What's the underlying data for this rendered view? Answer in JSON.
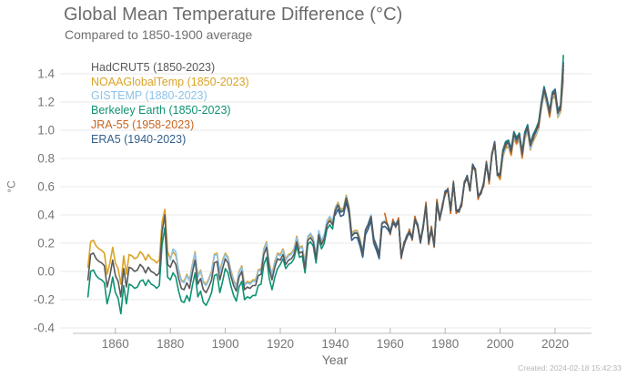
{
  "header": {
    "title": "Global Mean Temperature Difference (°C)",
    "subtitle": "Compared to 1850-1900 average"
  },
  "footer": {
    "created_label": "Created: 2024-02-18 15:42:33"
  },
  "chart_data": {
    "type": "line",
    "title": "Global Mean Temperature Difference (°C)",
    "subtitle": "Compared to 1850-1900 average",
    "xlabel": "Year",
    "ylabel": "°C",
    "xlim": [
      1850,
      2023
    ],
    "ylim": [
      -0.4,
      1.4
    ],
    "grid": "horizontal",
    "legend_position": "inside-top-left",
    "x_ticks": [
      1860,
      1880,
      1900,
      1920,
      1940,
      1960,
      1980,
      2000,
      2020
    ],
    "y_ticks": [
      {
        "value": 1.4,
        "label": "1.4"
      },
      {
        "value": 1.2,
        "label": "1.2"
      },
      {
        "value": 1.0,
        "label": "1.0"
      },
      {
        "value": 0.8,
        "label": "0.8"
      },
      {
        "value": 0.6,
        "label": "0.6"
      },
      {
        "value": 0.4,
        "label": "0.4"
      },
      {
        "value": 0.2,
        "label": "0.2"
      },
      {
        "value": 0.0,
        "label": "0.0"
      },
      {
        "value": -0.2,
        "label": "-0.2"
      },
      {
        "value": -0.4,
        "label": "-0.4"
      }
    ],
    "series": [
      {
        "name": "hadcrut5",
        "label": "HadCRUT5 (1850-2023)",
        "color": "#59595b",
        "start_year": 1850,
        "values": [
          -0.06,
          0.12,
          0.13,
          0.09,
          0.07,
          0.06,
          0.04,
          -0.11,
          -0.03,
          0.08,
          -0.03,
          -0.07,
          -0.18,
          0.02,
          -0.11,
          0.03,
          0.02,
          0.0,
          0.01,
          0.05,
          0.03,
          -0.01,
          0.03,
          0.0,
          -0.01,
          -0.03,
          -0.01,
          0.28,
          0.4,
          0.05,
          0.03,
          0.08,
          0.05,
          -0.05,
          -0.12,
          -0.13,
          -0.08,
          -0.12,
          -0.01,
          0.08,
          -0.09,
          -0.05,
          -0.13,
          -0.15,
          -0.11,
          -0.06,
          0.06,
          0.07,
          -0.06,
          0.02,
          0.09,
          0.06,
          -0.03,
          -0.1,
          -0.14,
          -0.04,
          0.0,
          -0.13,
          -0.11,
          -0.12,
          -0.1,
          -0.1,
          -0.03,
          -0.02,
          0.12,
          0.17,
          0.02,
          -0.06,
          0.03,
          0.09,
          0.08,
          0.12,
          0.05,
          0.08,
          0.09,
          0.12,
          0.21,
          0.13,
          0.14,
          0.02,
          0.22,
          0.24,
          0.21,
          0.09,
          0.26,
          0.19,
          0.23,
          0.33,
          0.36,
          0.33,
          0.43,
          0.47,
          0.42,
          0.43,
          0.52,
          0.44,
          0.25,
          0.27,
          0.27,
          0.21,
          0.13,
          0.29,
          0.33,
          0.39,
          0.23,
          0.18,
          0.12,
          0.34,
          0.35,
          0.33,
          0.28,
          0.35,
          0.33,
          0.36,
          0.11,
          0.19,
          0.25,
          0.28,
          0.24,
          0.37,
          0.33,
          0.21,
          0.32,
          0.47,
          0.21,
          0.3,
          0.19,
          0.49,
          0.38,
          0.46,
          0.56,
          0.57,
          0.43,
          0.62,
          0.43,
          0.42,
          0.48,
          0.62,
          0.67,
          0.57,
          0.75,
          0.71,
          0.53,
          0.55,
          0.62,
          0.76,
          0.64,
          0.82,
          0.91,
          0.68,
          0.68,
          0.84,
          0.9,
          0.91,
          0.85,
          0.97,
          0.93,
          0.96,
          0.83,
          0.97,
          1.02,
          0.89,
          0.95,
          0.99,
          1.04,
          1.18,
          1.29,
          1.21,
          1.12,
          1.25,
          1.27,
          1.12,
          1.16,
          1.46
        ]
      },
      {
        "name": "noaaglobaltemp",
        "label": "NOAAGlobalTemp (1850-2023)",
        "color": "#d9a326",
        "start_year": 1850,
        "values": [
          0.03,
          0.21,
          0.22,
          0.18,
          0.16,
          0.15,
          0.13,
          -0.02,
          0.06,
          0.17,
          0.06,
          0.02,
          -0.09,
          0.11,
          -0.02,
          0.12,
          0.11,
          0.09,
          0.1,
          0.14,
          0.12,
          0.08,
          0.12,
          0.09,
          0.08,
          0.06,
          0.08,
          0.35,
          0.44,
          0.14,
          0.09,
          0.14,
          0.11,
          0.01,
          -0.06,
          -0.07,
          -0.02,
          -0.06,
          0.05,
          0.14,
          -0.03,
          0.01,
          -0.07,
          -0.09,
          -0.05,
          0.0,
          0.12,
          0.13,
          0.0,
          0.08,
          0.13,
          0.1,
          0.01,
          -0.06,
          -0.1,
          0.0,
          0.04,
          -0.09,
          -0.07,
          -0.08,
          -0.06,
          -0.06,
          0.01,
          0.02,
          0.16,
          0.21,
          0.06,
          -0.02,
          0.07,
          0.13,
          0.12,
          0.16,
          0.09,
          0.12,
          0.13,
          0.16,
          0.25,
          0.17,
          0.18,
          0.06,
          0.24,
          0.26,
          0.23,
          0.11,
          0.28,
          0.21,
          0.25,
          0.35,
          0.38,
          0.35,
          0.45,
          0.49,
          0.44,
          0.45,
          0.54,
          0.46,
          0.27,
          0.29,
          0.29,
          0.23,
          0.13,
          0.29,
          0.33,
          0.39,
          0.23,
          0.18,
          0.12,
          0.34,
          0.35,
          0.33,
          0.28,
          0.35,
          0.33,
          0.36,
          0.11,
          0.19,
          0.25,
          0.28,
          0.24,
          0.37,
          0.33,
          0.21,
          0.32,
          0.47,
          0.21,
          0.3,
          0.19,
          0.49,
          0.38,
          0.46,
          0.56,
          0.57,
          0.43,
          0.62,
          0.43,
          0.42,
          0.48,
          0.62,
          0.67,
          0.57,
          0.75,
          0.71,
          0.53,
          0.55,
          0.62,
          0.76,
          0.64,
          0.82,
          0.91,
          0.68,
          0.65,
          0.81,
          0.87,
          0.88,
          0.82,
          0.94,
          0.9,
          0.93,
          0.8,
          0.94,
          0.99,
          0.86,
          0.92,
          0.96,
          1.01,
          1.15,
          1.26,
          1.18,
          1.09,
          1.22,
          1.24,
          1.09,
          1.13,
          1.35
        ]
      },
      {
        "name": "gistemp",
        "label": "GISTEMP (1880-2023)",
        "color": "#8cc3e9",
        "start_year": 1880,
        "values": [
          0.08,
          0.16,
          0.14,
          0.0,
          -0.07,
          -0.08,
          -0.03,
          -0.07,
          0.04,
          0.13,
          -0.04,
          0.0,
          -0.08,
          -0.1,
          -0.06,
          -0.01,
          0.11,
          0.12,
          -0.01,
          0.07,
          0.12,
          0.09,
          0.0,
          -0.07,
          -0.11,
          -0.01,
          0.03,
          -0.1,
          -0.08,
          -0.09,
          -0.07,
          -0.07,
          0.0,
          0.01,
          0.15,
          0.2,
          0.05,
          -0.03,
          0.06,
          0.12,
          0.11,
          0.15,
          0.08,
          0.11,
          0.12,
          0.15,
          0.24,
          0.16,
          0.17,
          0.05,
          0.25,
          0.27,
          0.24,
          0.12,
          0.29,
          0.22,
          0.26,
          0.36,
          0.39,
          0.36,
          0.44,
          0.48,
          0.43,
          0.44,
          0.53,
          0.45,
          0.26,
          0.28,
          0.28,
          0.22,
          0.14,
          0.3,
          0.34,
          0.4,
          0.24,
          0.19,
          0.13,
          0.35,
          0.36,
          0.34,
          0.29,
          0.36,
          0.34,
          0.37,
          0.12,
          0.2,
          0.26,
          0.29,
          0.25,
          0.38,
          0.34,
          0.22,
          0.33,
          0.48,
          0.22,
          0.31,
          0.2,
          0.5,
          0.39,
          0.47,
          0.57,
          0.58,
          0.44,
          0.63,
          0.44,
          0.43,
          0.49,
          0.63,
          0.68,
          0.58,
          0.76,
          0.72,
          0.54,
          0.56,
          0.63,
          0.77,
          0.65,
          0.83,
          0.92,
          0.69,
          0.66,
          0.82,
          0.88,
          0.89,
          0.83,
          0.95,
          0.91,
          0.94,
          0.81,
          0.95,
          1.0,
          0.87,
          0.93,
          0.97,
          1.02,
          1.16,
          1.27,
          1.19,
          1.1,
          1.23,
          1.25,
          1.1,
          1.14,
          1.37
        ]
      },
      {
        "name": "berkeley-earth",
        "label": "Berkeley Earth (1850-2023)",
        "color": "#0f9272",
        "start_year": 1850,
        "values": [
          -0.18,
          0.0,
          0.01,
          -0.03,
          -0.05,
          -0.06,
          -0.08,
          -0.23,
          -0.15,
          -0.04,
          -0.15,
          -0.19,
          -0.3,
          -0.1,
          -0.23,
          -0.09,
          -0.1,
          -0.12,
          -0.11,
          -0.07,
          -0.06,
          -0.1,
          -0.06,
          -0.09,
          -0.1,
          -0.12,
          -0.1,
          0.19,
          0.31,
          -0.04,
          -0.06,
          -0.01,
          -0.04,
          -0.14,
          -0.21,
          -0.22,
          -0.17,
          -0.21,
          -0.1,
          -0.01,
          -0.18,
          -0.14,
          -0.22,
          -0.24,
          -0.2,
          -0.15,
          -0.03,
          -0.02,
          -0.15,
          -0.07,
          0.02,
          -0.01,
          -0.1,
          -0.17,
          -0.21,
          -0.11,
          -0.07,
          -0.2,
          -0.18,
          -0.19,
          -0.17,
          -0.17,
          -0.1,
          -0.09,
          0.05,
          0.1,
          -0.05,
          -0.13,
          -0.04,
          0.02,
          0.05,
          0.09,
          0.02,
          0.05,
          0.06,
          0.09,
          0.18,
          0.1,
          0.11,
          -0.01,
          0.19,
          0.21,
          0.18,
          0.06,
          0.23,
          0.16,
          0.2,
          0.3,
          0.33,
          0.3,
          0.43,
          0.47,
          0.42,
          0.43,
          0.52,
          0.44,
          0.25,
          0.27,
          0.27,
          0.21,
          0.13,
          0.29,
          0.33,
          0.39,
          0.23,
          0.18,
          0.12,
          0.34,
          0.35,
          0.33,
          0.28,
          0.35,
          0.33,
          0.36,
          0.11,
          0.19,
          0.25,
          0.28,
          0.24,
          0.37,
          0.33,
          0.21,
          0.32,
          0.47,
          0.21,
          0.3,
          0.19,
          0.49,
          0.38,
          0.46,
          0.56,
          0.57,
          0.43,
          0.62,
          0.43,
          0.42,
          0.48,
          0.62,
          0.67,
          0.57,
          0.75,
          0.71,
          0.53,
          0.55,
          0.62,
          0.76,
          0.64,
          0.82,
          0.91,
          0.68,
          0.7,
          0.86,
          0.92,
          0.93,
          0.87,
          0.99,
          0.95,
          0.98,
          0.85,
          0.99,
          1.04,
          0.91,
          0.97,
          1.01,
          1.06,
          1.2,
          1.31,
          1.23,
          1.14,
          1.27,
          1.29,
          1.14,
          1.18,
          1.53
        ]
      },
      {
        "name": "jra-55",
        "label": "JRA-55 (1958-2023)",
        "color": "#c8641f",
        "start_year": 1958,
        "values": [
          0.41,
          0.33,
          0.26,
          0.37,
          0.31,
          0.38,
          0.09,
          0.21,
          0.23,
          0.3,
          0.22,
          0.39,
          0.31,
          0.23,
          0.3,
          0.49,
          0.19,
          0.32,
          0.17,
          0.51,
          0.36,
          0.48,
          0.54,
          0.59,
          0.41,
          0.64,
          0.41,
          0.44,
          0.46,
          0.64,
          0.65,
          0.59,
          0.73,
          0.73,
          0.51,
          0.57,
          0.6,
          0.78,
          0.62,
          0.84,
          0.89,
          0.7,
          0.66,
          0.86,
          0.88,
          0.93,
          0.83,
          0.99,
          0.91,
          0.98,
          0.81,
          0.99,
          1.0,
          0.91,
          0.93,
          1.01,
          1.02,
          1.2,
          1.27,
          1.23,
          1.1,
          1.27,
          1.25,
          1.14,
          1.14,
          1.43
        ]
      },
      {
        "name": "era5",
        "label": "ERA5 (1940-2023)",
        "color": "#33608c",
        "start_year": 1940,
        "values": [
          0.4,
          0.44,
          0.39,
          0.4,
          0.49,
          0.41,
          0.22,
          0.24,
          0.24,
          0.18,
          0.1,
          0.26,
          0.3,
          0.36,
          0.2,
          0.15,
          0.09,
          0.31,
          0.32,
          0.3,
          0.27,
          0.34,
          0.32,
          0.35,
          0.1,
          0.18,
          0.24,
          0.27,
          0.23,
          0.36,
          0.32,
          0.2,
          0.31,
          0.46,
          0.2,
          0.29,
          0.18,
          0.48,
          0.37,
          0.45,
          0.57,
          0.58,
          0.44,
          0.63,
          0.44,
          0.43,
          0.49,
          0.63,
          0.68,
          0.58,
          0.76,
          0.72,
          0.54,
          0.56,
          0.63,
          0.77,
          0.65,
          0.83,
          0.92,
          0.69,
          0.69,
          0.85,
          0.91,
          0.92,
          0.86,
          0.98,
          0.94,
          0.97,
          0.84,
          0.98,
          1.03,
          0.9,
          0.96,
          1.0,
          1.05,
          1.19,
          1.3,
          1.22,
          1.13,
          1.26,
          1.29,
          1.14,
          1.17,
          1.48
        ]
      }
    ]
  }
}
